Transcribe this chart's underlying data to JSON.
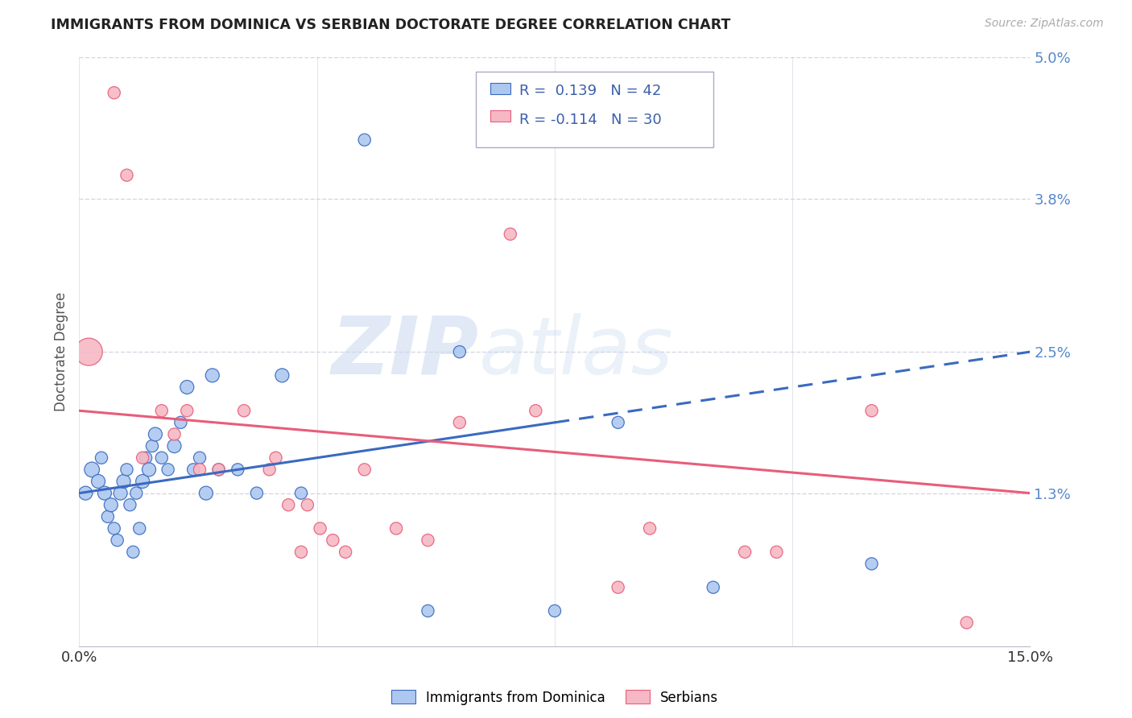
{
  "title": "IMMIGRANTS FROM DOMINICA VS SERBIAN DOCTORATE DEGREE CORRELATION CHART",
  "source": "Source: ZipAtlas.com",
  "ylabel": "Doctorate Degree",
  "xlim": [
    0.0,
    15.0
  ],
  "ylim": [
    0.0,
    5.0
  ],
  "ytick_positions": [
    0.0,
    1.3,
    2.5,
    3.8,
    5.0
  ],
  "ytick_labels": [
    "",
    "1.3%",
    "2.5%",
    "3.8%",
    "5.0%"
  ],
  "blue_color": "#adc8f0",
  "pink_color": "#f5b8c4",
  "blue_line_color": "#3a6abf",
  "pink_line_color": "#e85d7a",
  "blue_R": 0.139,
  "blue_N": 42,
  "pink_R": -0.114,
  "pink_N": 30,
  "blue_scatter_x": [
    0.1,
    0.2,
    0.3,
    0.35,
    0.4,
    0.45,
    0.5,
    0.55,
    0.6,
    0.65,
    0.7,
    0.75,
    0.8,
    0.85,
    0.9,
    0.95,
    1.0,
    1.05,
    1.1,
    1.15,
    1.2,
    1.3,
    1.4,
    1.5,
    1.6,
    1.7,
    1.8,
    1.9,
    2.0,
    2.1,
    2.2,
    2.5,
    2.8,
    3.2,
    3.5,
    4.5,
    5.5,
    6.0,
    7.5,
    8.5,
    10.0,
    12.5
  ],
  "blue_scatter_y": [
    1.3,
    1.5,
    1.4,
    1.6,
    1.3,
    1.1,
    1.2,
    1.0,
    0.9,
    1.3,
    1.4,
    1.5,
    1.2,
    0.8,
    1.3,
    1.0,
    1.4,
    1.6,
    1.5,
    1.7,
    1.8,
    1.6,
    1.5,
    1.7,
    1.9,
    2.2,
    1.5,
    1.6,
    1.3,
    2.3,
    1.5,
    1.5,
    1.3,
    2.3,
    1.3,
    4.3,
    0.3,
    2.5,
    0.3,
    1.9,
    0.5,
    0.7
  ],
  "blue_scatter_sizes": [
    100,
    120,
    100,
    80,
    100,
    80,
    100,
    80,
    80,
    100,
    100,
    80,
    80,
    80,
    80,
    80,
    100,
    80,
    100,
    80,
    100,
    80,
    80,
    100,
    80,
    100,
    80,
    80,
    100,
    100,
    80,
    80,
    80,
    100,
    80,
    80,
    80,
    80,
    80,
    80,
    80,
    80
  ],
  "pink_scatter_x": [
    0.15,
    0.55,
    0.75,
    1.0,
    1.3,
    1.5,
    1.7,
    1.9,
    2.2,
    2.6,
    3.0,
    3.1,
    3.5,
    3.8,
    4.0,
    4.2,
    4.5,
    5.0,
    5.5,
    6.0,
    6.8,
    7.2,
    8.5,
    9.0,
    10.5,
    11.0,
    12.5,
    14.0,
    3.3,
    3.6
  ],
  "pink_scatter_y": [
    2.5,
    4.7,
    4.0,
    1.6,
    2.0,
    1.8,
    2.0,
    1.5,
    1.5,
    2.0,
    1.5,
    1.6,
    0.8,
    1.0,
    0.9,
    0.8,
    1.5,
    1.0,
    0.9,
    1.9,
    3.5,
    2.0,
    0.5,
    1.0,
    0.8,
    0.8,
    2.0,
    0.2,
    1.2,
    1.2
  ],
  "pink_scatter_sizes": [
    400,
    80,
    80,
    80,
    80,
    80,
    80,
    80,
    80,
    80,
    80,
    80,
    80,
    80,
    80,
    80,
    80,
    80,
    80,
    80,
    80,
    80,
    80,
    80,
    80,
    80,
    80,
    80,
    80,
    80
  ],
  "blue_trend_start_y": 1.3,
  "blue_trend_end_y": 2.5,
  "pink_trend_start_y": 2.0,
  "pink_trend_end_y": 1.3,
  "blue_solid_end_x": 7.5,
  "watermark_zip": "ZIP",
  "watermark_atlas": "atlas",
  "background_color": "#ffffff",
  "grid_color": "#ccccdd",
  "legend_label_blue": "Immigrants from Dominica",
  "legend_label_pink": "Serbians"
}
